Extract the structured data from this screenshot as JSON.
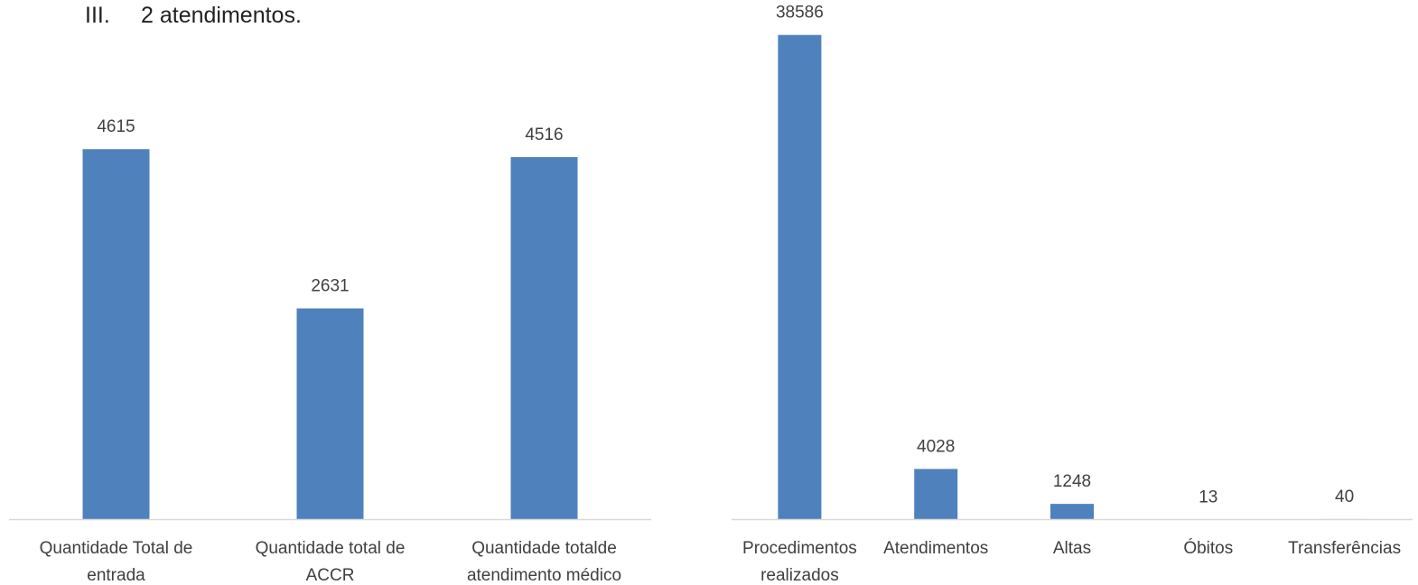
{
  "heading": {
    "number": "III.",
    "text": "2 atendimentos."
  },
  "colors": {
    "bar": "#4f81bd",
    "axis": "#d9d9d9",
    "text": "#404040"
  },
  "chart_data": [
    {
      "type": "bar",
      "categories": [
        [
          "Quantidade Total de",
          "entrada"
        ],
        [
          "Quantidade total de",
          "ACCR"
        ],
        [
          "Quantidade totalde",
          "atendimento médico"
        ]
      ],
      "values": [
        4615,
        2631,
        4516
      ],
      "data_labels": [
        "4615",
        "2631",
        "4516"
      ],
      "ylim": [
        0,
        5000
      ],
      "grid": false,
      "legend": "none"
    },
    {
      "type": "bar",
      "categories": [
        [
          "Procedimentos",
          "realizados"
        ],
        [
          "Atendimentos"
        ],
        [
          "Altas"
        ],
        [
          "Óbitos"
        ],
        [
          "Transferências"
        ]
      ],
      "values": [
        38586,
        4028,
        1248,
        13,
        40
      ],
      "data_labels": [
        "38586",
        "4028",
        "1248",
        "13",
        "40"
      ],
      "ylim": [
        0,
        39500
      ],
      "grid": false,
      "legend": "none"
    }
  ]
}
